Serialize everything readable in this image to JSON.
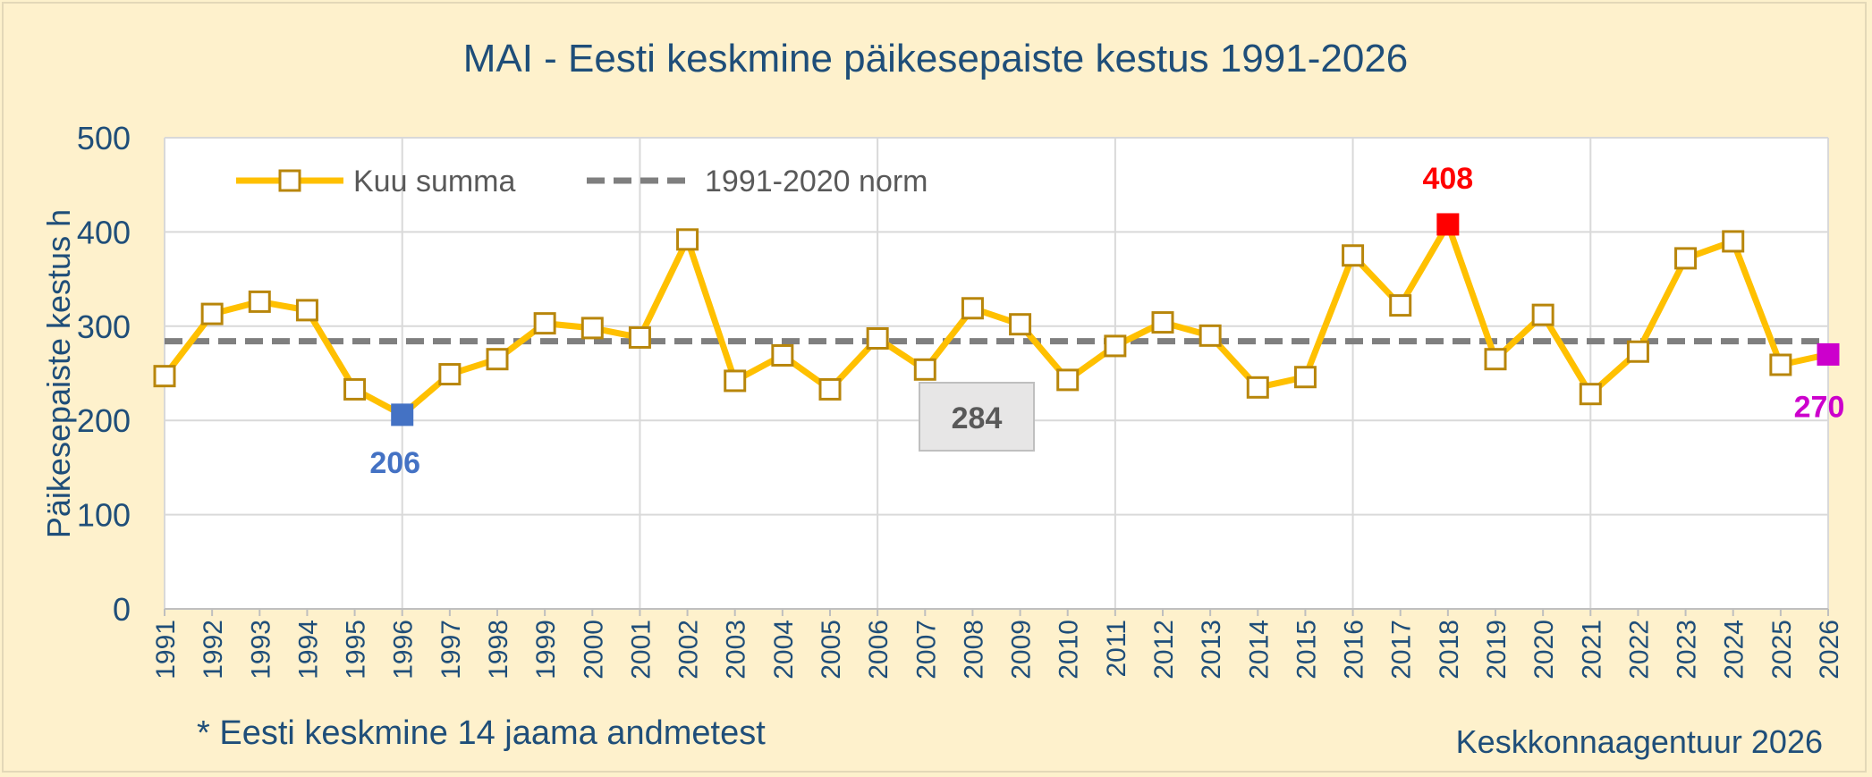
{
  "chart_data": {
    "type": "line",
    "title": "MAI - Eesti keskmine päikesepaiste kestus 1991-2026",
    "ylabel": "Päikesepaiste kestus h",
    "xlabel": "",
    "ylim": [
      0,
      500
    ],
    "yticks": [
      "0",
      "100",
      "200",
      "300",
      "400",
      "500"
    ],
    "grid": true,
    "legend_position": "top-left",
    "x": [
      "1991",
      "1992",
      "1993",
      "1994",
      "1995",
      "1996",
      "1997",
      "1998",
      "1999",
      "2000",
      "2001",
      "2002",
      "2003",
      "2004",
      "2005",
      "2006",
      "2007",
      "2008",
      "2009",
      "2010",
      "2011",
      "2012",
      "2013",
      "2014",
      "2015",
      "2016",
      "2017",
      "2018",
      "2019",
      "2020",
      "2021",
      "2022",
      "2023",
      "2024",
      "2025",
      "2026"
    ],
    "series": [
      {
        "name": "Kuu summa",
        "color": "#ffc000",
        "marker_edge": "#b8860b",
        "values": [
          247,
          313,
          326,
          317,
          233,
          206,
          249,
          265,
          303,
          298,
          288,
          392,
          242,
          269,
          233,
          287,
          254,
          319,
          302,
          243,
          279,
          304,
          290,
          235,
          246,
          375,
          322,
          408,
          265,
          312,
          228,
          273,
          372,
          390,
          259,
          270
        ]
      },
      {
        "name": "1991-2020 norm",
        "color": "#7f7f7f",
        "value": 284
      }
    ],
    "annotations": [
      {
        "x": "1996",
        "value": 206,
        "text": "206",
        "color": "#4472c4"
      },
      {
        "x": "2018",
        "value": 408,
        "text": "408",
        "color": "#ff0000"
      },
      {
        "x": "2026",
        "value": 270,
        "text": "270",
        "color": "#cc00cc"
      },
      {
        "text": "284",
        "color": "#595959",
        "kind": "norm-box"
      }
    ]
  },
  "footnote": "* Eesti keskmine 14 jaama andmetest",
  "source": "Keskkonnaagentuur 2026"
}
